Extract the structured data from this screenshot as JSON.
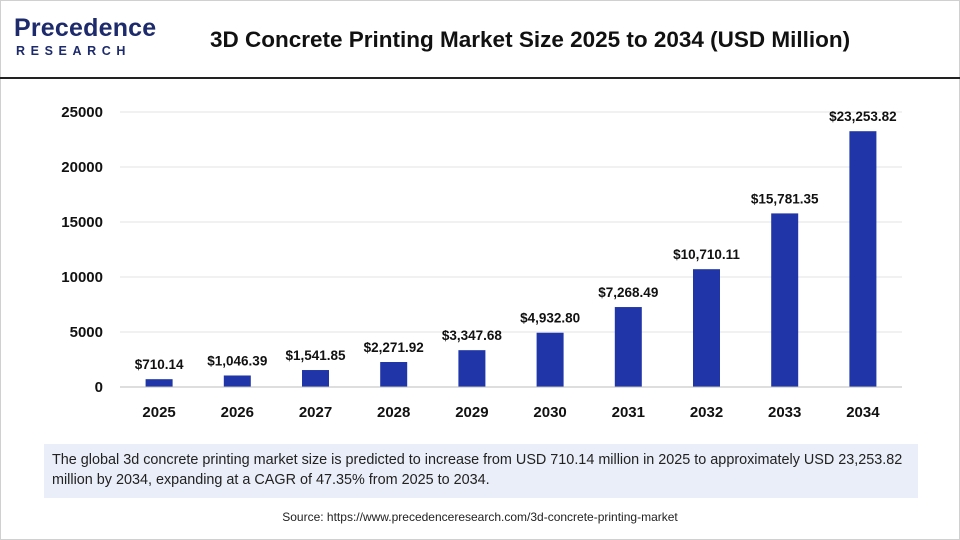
{
  "header": {
    "logo_top": "recedence",
    "logo_letter": "P",
    "logo_bottom": "RESEARCH",
    "title": "3D Concrete Printing Market Size 2025 to 2034 (USD Million)"
  },
  "colors": {
    "bar": "#1f35a8",
    "grid": "#e3e3e3",
    "axis": "#bdbdbd",
    "desc_bg": "#e9eef8",
    "logo": "#1d2a6b"
  },
  "chart_data": {
    "type": "bar",
    "categories": [
      "2025",
      "2026",
      "2027",
      "2028",
      "2029",
      "2030",
      "2031",
      "2032",
      "2033",
      "2034"
    ],
    "values": [
      710.14,
      1046.39,
      1541.85,
      2271.92,
      3347.68,
      4932.8,
      7268.49,
      10710.11,
      15781.35,
      23253.82
    ],
    "data_labels": [
      "$710.14",
      "$1,046.39",
      "$1,541.85",
      "$2,271.92",
      "$3,347.68",
      "$4,932.80",
      "$7,268.49",
      "$10,710.11",
      "$15,781.35",
      "$23,253.82"
    ],
    "yticks": [
      "0",
      "5000",
      "10000",
      "15000",
      "20000",
      "25000"
    ],
    "ylim": [
      0,
      25000
    ],
    "grid": true,
    "legend": "none"
  },
  "description": "The global 3d concrete printing market size is predicted to increase from USD 710.14 million in 2025 to approximately USD 23,253.82 million by 2034, expanding at a CAGR of 47.35% from 2025 to 2034.",
  "source": "Source: https://www.precedenceresearch.com/3d-concrete-printing-market"
}
